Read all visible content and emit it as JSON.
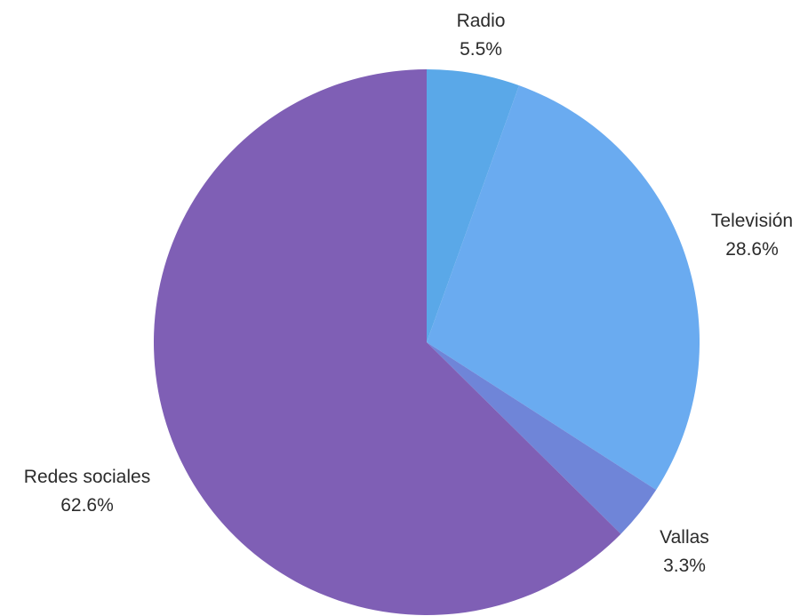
{
  "chart_data": {
    "type": "pie",
    "title": "",
    "slices": [
      {
        "label": "Radio",
        "value": 5.5,
        "value_label": "5.5%",
        "color": "#5aa8e8"
      },
      {
        "label": "Televisión",
        "value": 28.6,
        "value_label": "28.6%",
        "color": "#6aabf0"
      },
      {
        "label": "Vallas",
        "value": 3.3,
        "value_label": "3.3%",
        "color": "#6f85d8"
      },
      {
        "label": "Redes sociales",
        "value": 62.6,
        "value_label": "62.6%",
        "color": "#7f5fb5"
      }
    ],
    "start": "top",
    "direction": "clockwise",
    "legend": "none",
    "labels": "outside"
  }
}
